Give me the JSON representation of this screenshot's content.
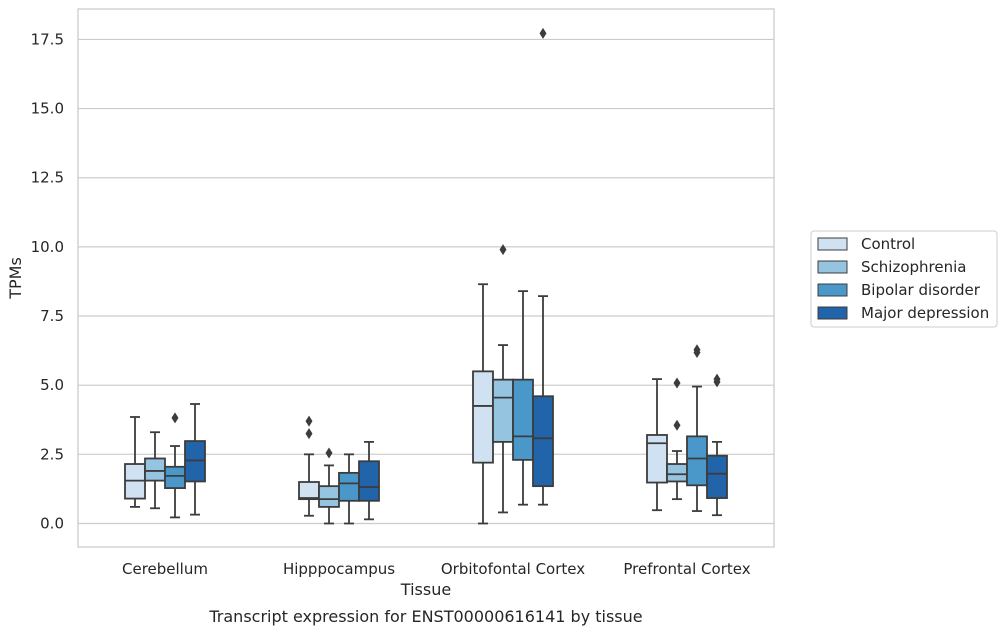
{
  "caption": "Transcript expression for ENST00000616141 by tissue",
  "chart_data": {
    "type": "box",
    "title": "",
    "xlabel": "Tissue",
    "ylabel": "TPMs",
    "ylim": [
      -0.85,
      18.6
    ],
    "yticks": [
      "0.0",
      "2.5",
      "5.0",
      "7.5",
      "10.0",
      "12.5",
      "15.0",
      "17.5"
    ],
    "grid": "horizontal",
    "legend_position": "right",
    "categories": [
      "Cerebellum",
      "Hipppocampus",
      "Orbitofontal Cortex",
      "Prefrontal Cortex"
    ],
    "series": [
      {
        "name": "Control",
        "color": "#d0e1f2",
        "boxes": [
          {
            "whisker_low": 0.6,
            "q1": 0.9,
            "median": 1.55,
            "q3": 2.15,
            "whisker_high": 3.85,
            "outliers": []
          },
          {
            "whisker_low": 0.28,
            "q1": 0.88,
            "median": 0.92,
            "q3": 1.5,
            "whisker_high": 2.5,
            "outliers": [
              3.25,
              3.7
            ]
          },
          {
            "whisker_low": 0.0,
            "q1": 2.2,
            "median": 4.25,
            "q3": 5.5,
            "whisker_high": 8.65,
            "outliers": []
          },
          {
            "whisker_low": 0.48,
            "q1": 1.48,
            "median": 2.9,
            "q3": 3.2,
            "whisker_high": 5.22,
            "outliers": []
          }
        ]
      },
      {
        "name": "Schizophrenia",
        "color": "#94c4df",
        "boxes": [
          {
            "whisker_low": 0.55,
            "q1": 1.55,
            "median": 1.9,
            "q3": 2.35,
            "whisker_high": 3.3,
            "outliers": []
          },
          {
            "whisker_low": 0.0,
            "q1": 0.6,
            "median": 0.88,
            "q3": 1.35,
            "whisker_high": 2.1,
            "outliers": [
              2.55
            ]
          },
          {
            "whisker_low": 0.4,
            "q1": 2.95,
            "median": 4.55,
            "q3": 5.2,
            "whisker_high": 6.45,
            "outliers": [
              9.9
            ]
          },
          {
            "whisker_low": 0.88,
            "q1": 1.52,
            "median": 1.78,
            "q3": 2.15,
            "whisker_high": 2.62,
            "outliers": [
              3.55,
              5.08
            ]
          }
        ]
      },
      {
        "name": "Bipolar disorder",
        "color": "#4a98c9",
        "boxes": [
          {
            "whisker_low": 0.22,
            "q1": 1.28,
            "median": 1.72,
            "q3": 2.05,
            "whisker_high": 2.8,
            "outliers": [
              3.82
            ]
          },
          {
            "whisker_low": 0.0,
            "q1": 0.82,
            "median": 1.45,
            "q3": 1.83,
            "whisker_high": 2.5,
            "outliers": []
          },
          {
            "whisker_low": 0.68,
            "q1": 2.3,
            "median": 3.15,
            "q3": 5.2,
            "whisker_high": 8.4,
            "outliers": []
          },
          {
            "whisker_low": 0.45,
            "q1": 1.38,
            "median": 2.35,
            "q3": 3.15,
            "whisker_high": 4.95,
            "outliers": [
              6.18,
              6.28
            ]
          }
        ]
      },
      {
        "name": "Major depression",
        "color": "#2264aa",
        "boxes": [
          {
            "whisker_low": 0.32,
            "q1": 1.52,
            "median": 2.28,
            "q3": 2.98,
            "whisker_high": 4.32,
            "outliers": []
          },
          {
            "whisker_low": 0.15,
            "q1": 0.82,
            "median": 1.32,
            "q3": 2.25,
            "whisker_high": 2.95,
            "outliers": []
          },
          {
            "whisker_low": 0.68,
            "q1": 1.35,
            "median": 3.08,
            "q3": 4.6,
            "whisker_high": 8.22,
            "outliers": [
              17.72
            ]
          },
          {
            "whisker_low": 0.3,
            "q1": 0.92,
            "median": 1.8,
            "q3": 2.45,
            "whisker_high": 2.95,
            "outliers": [
              5.12,
              5.22
            ]
          }
        ]
      }
    ]
  }
}
